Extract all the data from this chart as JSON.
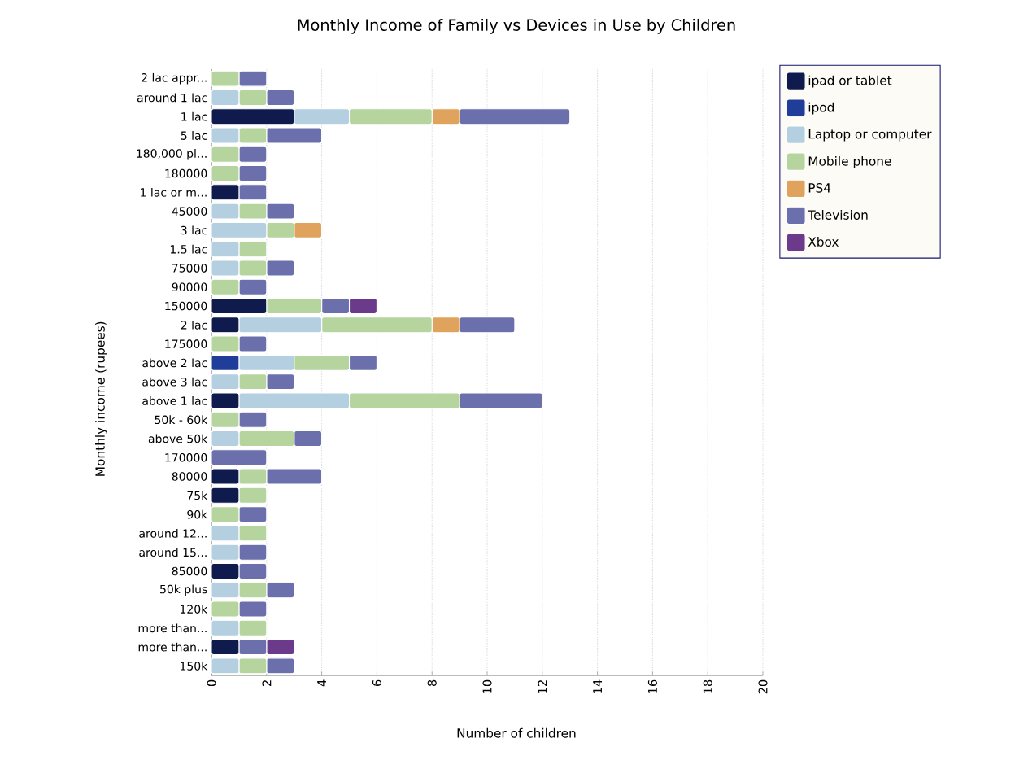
{
  "chart_data": {
    "type": "bar",
    "title": "Monthly Income of Family vs Devices in Use by Children",
    "xlabel": "Number of children",
    "ylabel": "Monthly income (rupees)",
    "orientation": "horizontal",
    "stacked": true,
    "grid": "x",
    "legend": "right",
    "xlim": [
      0,
      20
    ],
    "xticks": [
      0,
      2,
      4,
      6,
      8,
      10,
      12,
      14,
      16,
      18,
      20
    ],
    "categories": [
      "2 lac appr...",
      "around 1 lac",
      "1 lac",
      "5 lac",
      "180,000 pl...",
      "180000",
      "1 lac or m...",
      "45000",
      "3 lac",
      "1.5 lac",
      "75000",
      "90000",
      "150000",
      "2 lac",
      "175000",
      "above 2 lac",
      "above 3 lac",
      "above 1 lac",
      "50k - 60k",
      "above 50k",
      "170000",
      "80000",
      "75k",
      "90k",
      "around 12...",
      "around 15...",
      "85000",
      "50k plus",
      "120k",
      "more than...",
      "more than...",
      "150k"
    ],
    "series": [
      {
        "name": "ipad or tablet",
        "color": "#0f1a4d",
        "values": [
          null,
          null,
          3,
          null,
          null,
          null,
          1,
          null,
          null,
          null,
          null,
          null,
          2,
          1,
          null,
          null,
          null,
          1,
          null,
          null,
          null,
          1,
          1,
          null,
          null,
          null,
          1,
          null,
          null,
          null,
          1,
          null
        ]
      },
      {
        "name": "ipod",
        "color": "#1f3d99",
        "values": [
          null,
          null,
          null,
          null,
          null,
          null,
          null,
          null,
          null,
          null,
          null,
          null,
          null,
          null,
          null,
          1,
          null,
          null,
          null,
          null,
          null,
          null,
          null,
          null,
          null,
          null,
          null,
          null,
          null,
          null,
          null,
          null
        ]
      },
      {
        "name": "Laptop or computer",
        "color": "#b3cfe0",
        "values": [
          null,
          1,
          2,
          1,
          null,
          null,
          null,
          1,
          2,
          1,
          1,
          null,
          null,
          3,
          null,
          2,
          1,
          4,
          null,
          1,
          null,
          null,
          null,
          null,
          1,
          1,
          null,
          1,
          null,
          1,
          null,
          1
        ]
      },
      {
        "name": "Mobile phone",
        "color": "#b5d49e",
        "values": [
          1,
          1,
          3,
          1,
          1,
          1,
          null,
          1,
          1,
          1,
          1,
          1,
          2,
          4,
          1,
          2,
          1,
          4,
          1,
          2,
          null,
          1,
          1,
          1,
          1,
          null,
          null,
          1,
          1,
          1,
          null,
          1
        ]
      },
      {
        "name": "PS4",
        "color": "#e0a35e",
        "values": [
          null,
          null,
          1,
          null,
          null,
          null,
          null,
          null,
          1,
          null,
          null,
          null,
          null,
          1,
          null,
          null,
          null,
          null,
          null,
          null,
          null,
          null,
          null,
          null,
          null,
          null,
          null,
          null,
          null,
          null,
          null,
          null
        ]
      },
      {
        "name": "Television",
        "color": "#6b70ad",
        "values": [
          1,
          1,
          4,
          2,
          1,
          1,
          1,
          1,
          null,
          null,
          1,
          1,
          1,
          2,
          1,
          1,
          1,
          3,
          1,
          1,
          2,
          2,
          null,
          1,
          null,
          1,
          1,
          1,
          1,
          null,
          1,
          1
        ]
      },
      {
        "name": "Xbox",
        "color": "#6b3a8a",
        "values": [
          null,
          null,
          null,
          null,
          null,
          null,
          null,
          null,
          null,
          null,
          null,
          null,
          1,
          null,
          null,
          null,
          null,
          null,
          null,
          null,
          null,
          null,
          null,
          null,
          null,
          null,
          null,
          null,
          null,
          null,
          1,
          null
        ]
      }
    ]
  }
}
